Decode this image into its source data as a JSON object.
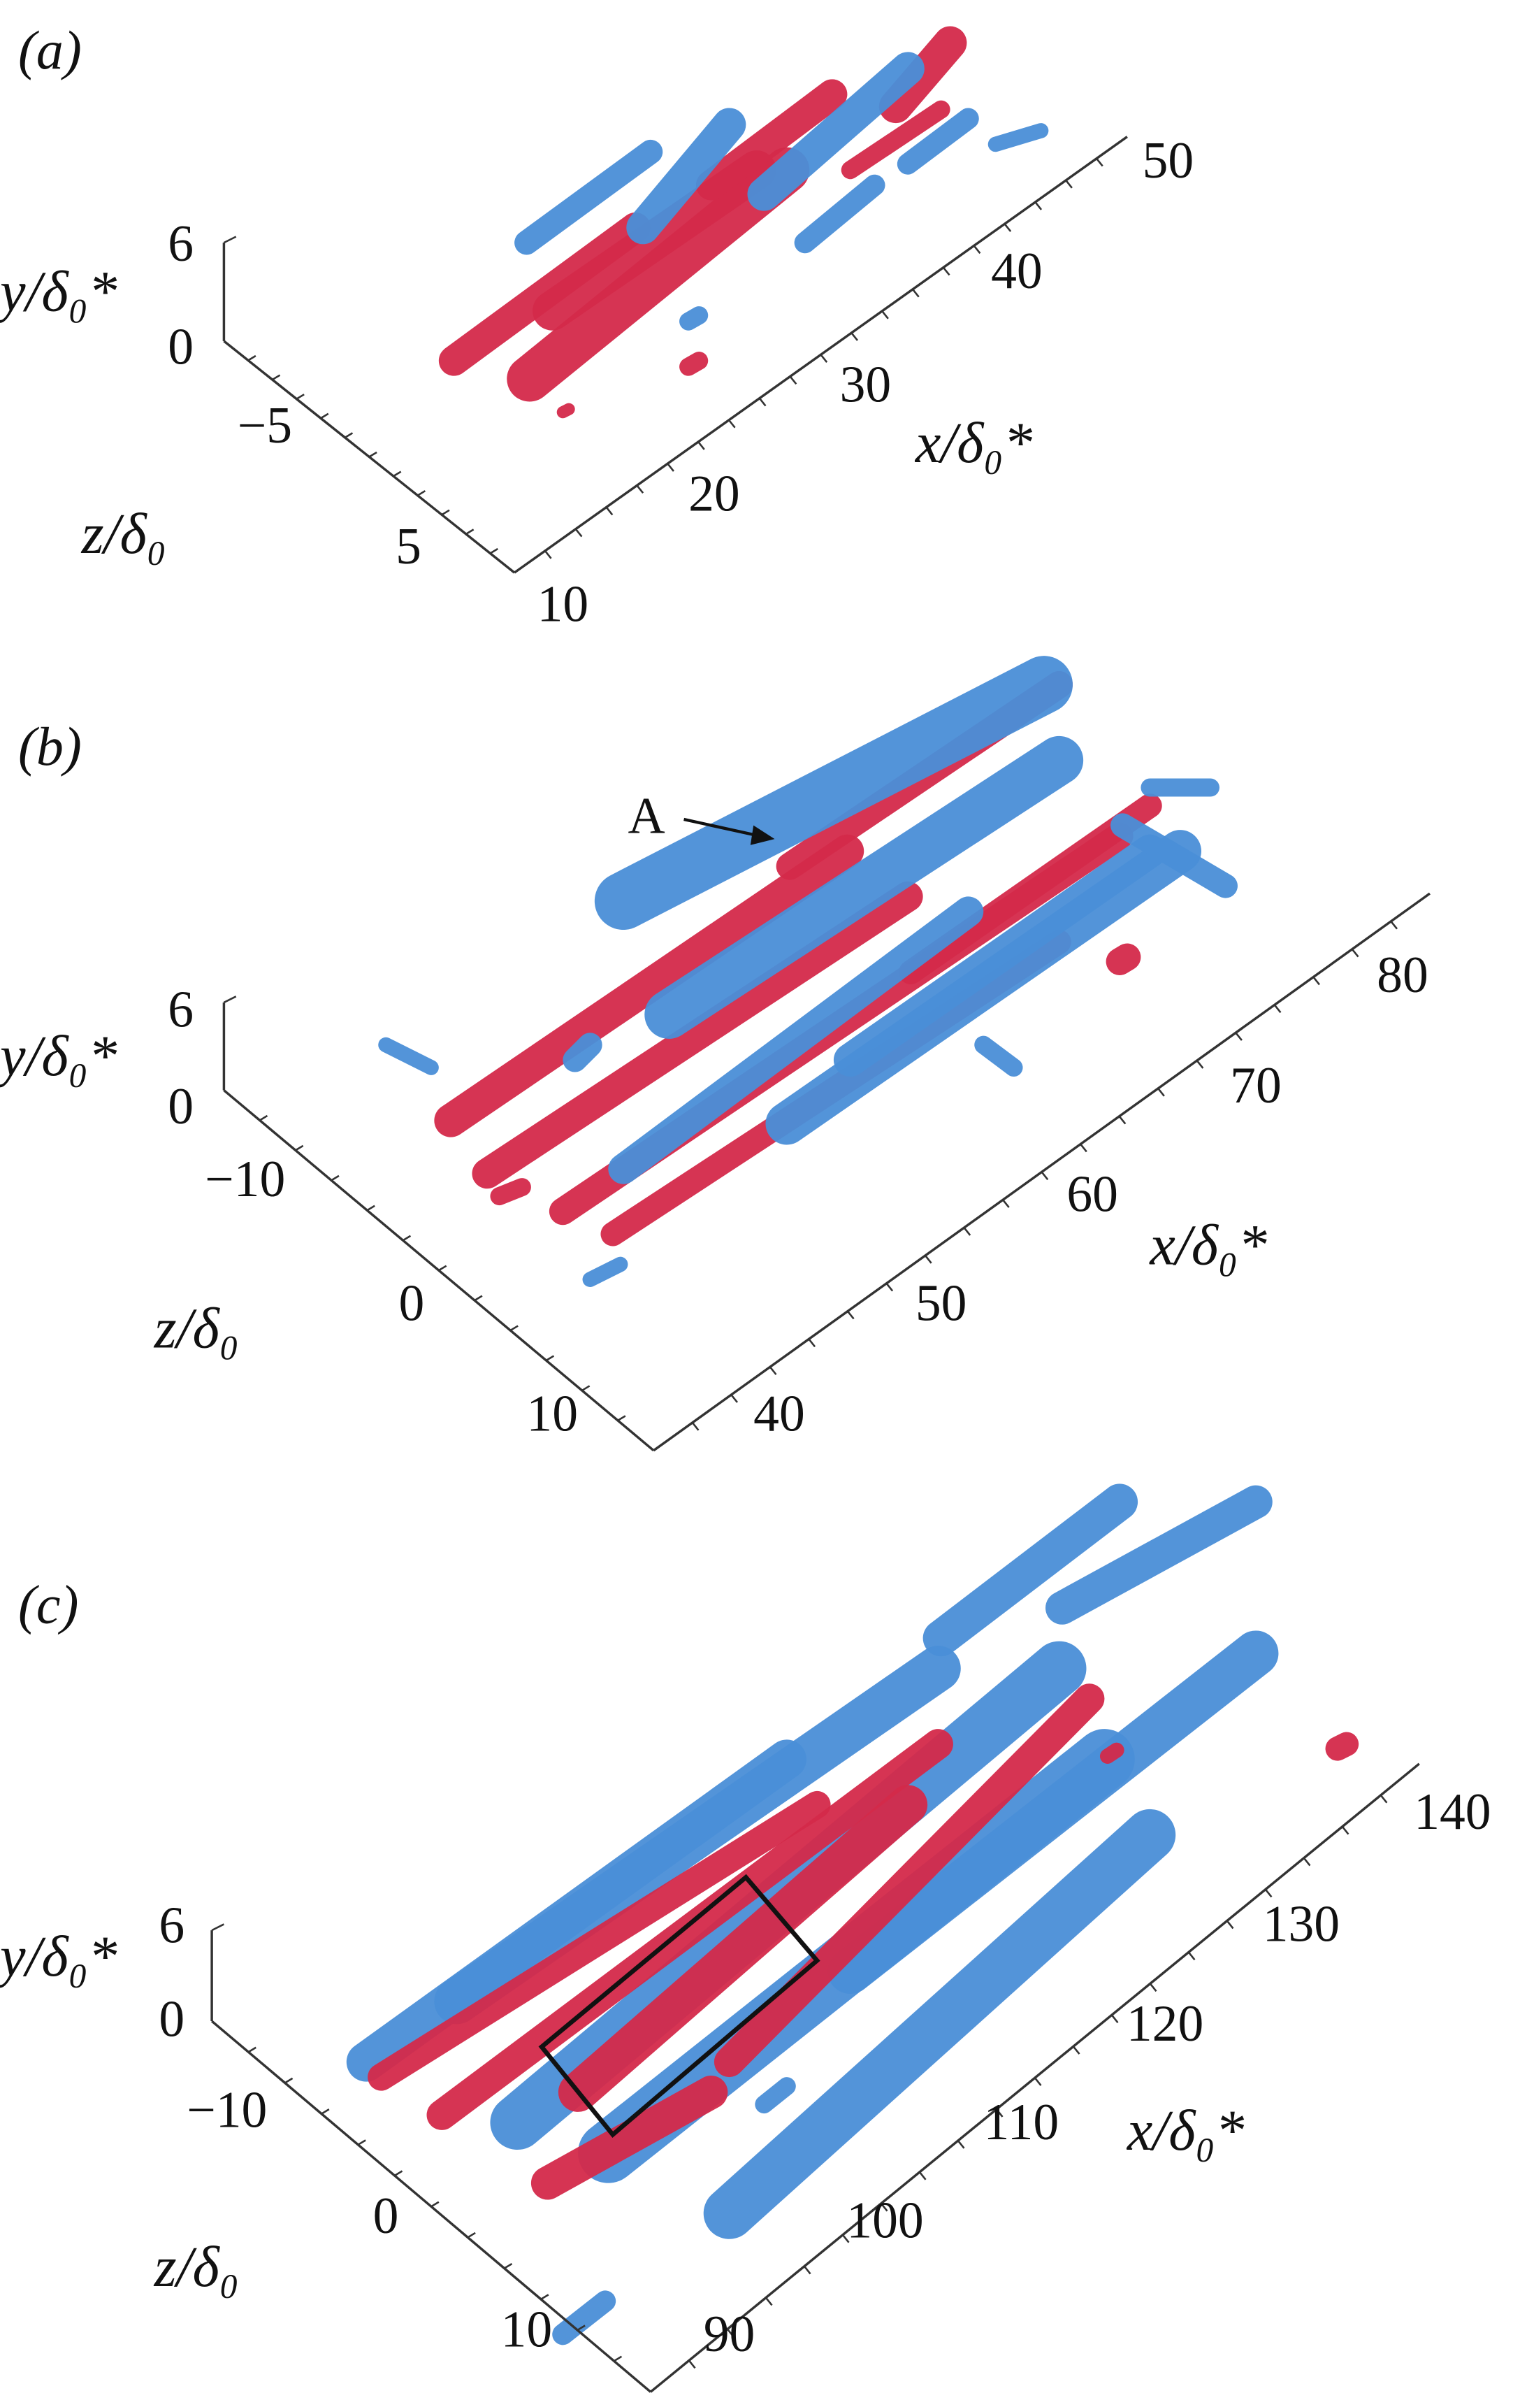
{
  "colors": {
    "positive": "#d42a4a",
    "negative": "#4a8fd8",
    "axis": "#333333"
  },
  "panels": [
    {
      "label": "(a)",
      "ylabel": "y/δ₀*",
      "zlabel": "z/δ₀",
      "xlabel": "x/δ₀*",
      "y_ticks": [
        "6",
        "0"
      ],
      "z_ticks": [
        "−5",
        "5"
      ],
      "x_ticks": [
        "10",
        "20",
        "30",
        "40",
        "50"
      ]
    },
    {
      "label": "(b)",
      "ylabel": "y/δ₀*",
      "zlabel": "z/δ₀",
      "xlabel": "x/δ₀*",
      "y_ticks": [
        "6",
        "0"
      ],
      "z_ticks": [
        "−10",
        "0",
        "10"
      ],
      "x_ticks": [
        "40",
        "50",
        "60",
        "70",
        "80"
      ],
      "annotation": "A"
    },
    {
      "label": "(c)",
      "ylabel": "y/δ₀*",
      "zlabel": "z/δ₀",
      "xlabel": "x/δ₀*",
      "y_ticks": [
        "6",
        "0"
      ],
      "z_ticks": [
        "−10",
        "0",
        "10"
      ],
      "x_ticks": [
        "90",
        "100",
        "110",
        "120",
        "130",
        "140"
      ]
    }
  ]
}
